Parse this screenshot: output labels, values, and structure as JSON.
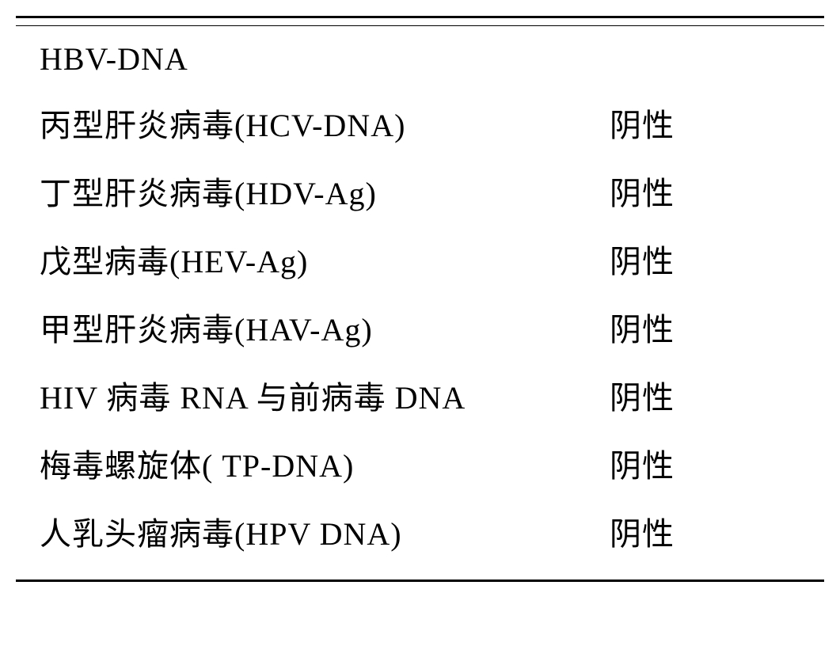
{
  "table": {
    "border_color": "#000000",
    "background_color": "#ffffff",
    "font_family": "SimSun",
    "font_size": 40,
    "text_color": "#000000",
    "name_column_width": 720,
    "rows": [
      {
        "name": "HBV-DNA",
        "result": ""
      },
      {
        "name": "丙型肝炎病毒(HCV-DNA)",
        "result": "阴性"
      },
      {
        "name": "丁型肝炎病毒(HDV-Ag)",
        "result": "阴性"
      },
      {
        "name": "戊型病毒(HEV-Ag)",
        "result": "阴性"
      },
      {
        "name": "甲型肝炎病毒(HAV-Ag)",
        "result": "阴性"
      },
      {
        "name": "HIV 病毒 RNA 与前病毒 DNA",
        "result": "阴性"
      },
      {
        "name": "梅毒螺旋体( TP-DNA)",
        "result": "阴性"
      },
      {
        "name": "人乳头瘤病毒(HPV DNA)",
        "result": "阴性"
      }
    ]
  }
}
